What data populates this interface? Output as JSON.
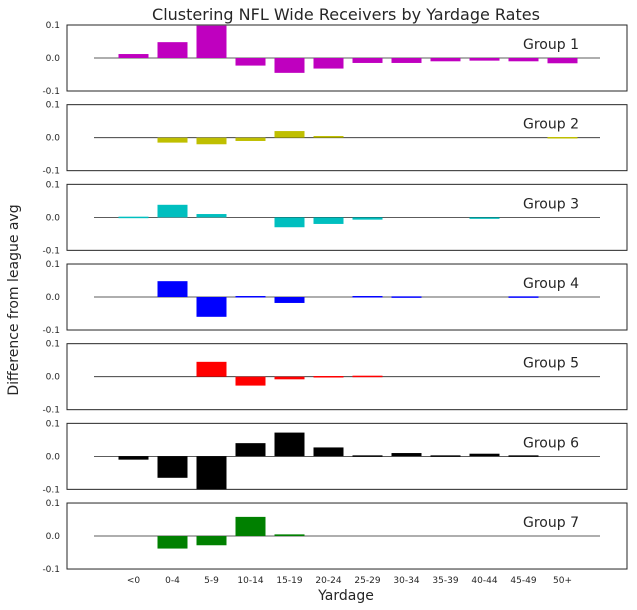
{
  "chart_data": {
    "type": "bar",
    "title": "Clustering NFL Wide Receivers by Yardage Rates",
    "xlabel": "Yardage",
    "ylabel": "Difference from league avg",
    "categories": [
      "<0",
      "0-4",
      "5-9",
      "10-14",
      "15-19",
      "20-24",
      "25-29",
      "30-34",
      "35-39",
      "40-44",
      "45-49",
      "50+"
    ],
    "ylim": [
      -0.1,
      0.1
    ],
    "yticks": [
      "-0.1",
      "0.0",
      "0.1"
    ],
    "grid": false,
    "series": [
      {
        "name": "Group 1",
        "color": "#bf00bf",
        "values": [
          0.012,
          0.048,
          0.098,
          -0.023,
          -0.045,
          -0.032,
          -0.015,
          -0.015,
          -0.01,
          -0.008,
          -0.01,
          -0.016
        ]
      },
      {
        "name": "Group 2",
        "color": "#bfbf00",
        "values": [
          0,
          -0.015,
          -0.02,
          -0.01,
          0.02,
          0.005,
          0,
          0,
          0,
          0,
          0,
          0.002
        ]
      },
      {
        "name": "Group 3",
        "color": "#00bfbf",
        "values": [
          0.002,
          0.038,
          0.01,
          0,
          -0.03,
          -0.02,
          -0.007,
          0,
          0,
          -0.003,
          0,
          0
        ]
      },
      {
        "name": "Group 4",
        "color": "#0000ff",
        "values": [
          0,
          0.048,
          -0.06,
          0.003,
          -0.018,
          0,
          0.003,
          0.002,
          0,
          0,
          0.002,
          0
        ]
      },
      {
        "name": "Group 5",
        "color": "#ff0000",
        "values": [
          0,
          0,
          0.045,
          -0.027,
          -0.008,
          0.002,
          0.003,
          0,
          0,
          0,
          0,
          0
        ]
      },
      {
        "name": "Group 6",
        "color": "#000000",
        "values": [
          -0.01,
          -0.065,
          -0.1,
          0.04,
          0.072,
          0.027,
          0.003,
          0.01,
          0.003,
          0.008,
          0.003,
          0
        ]
      },
      {
        "name": "Group 7",
        "color": "#008000",
        "values": [
          0,
          -0.038,
          -0.028,
          0.058,
          0.005,
          0,
          0,
          0,
          0,
          0,
          0,
          0
        ]
      }
    ]
  }
}
